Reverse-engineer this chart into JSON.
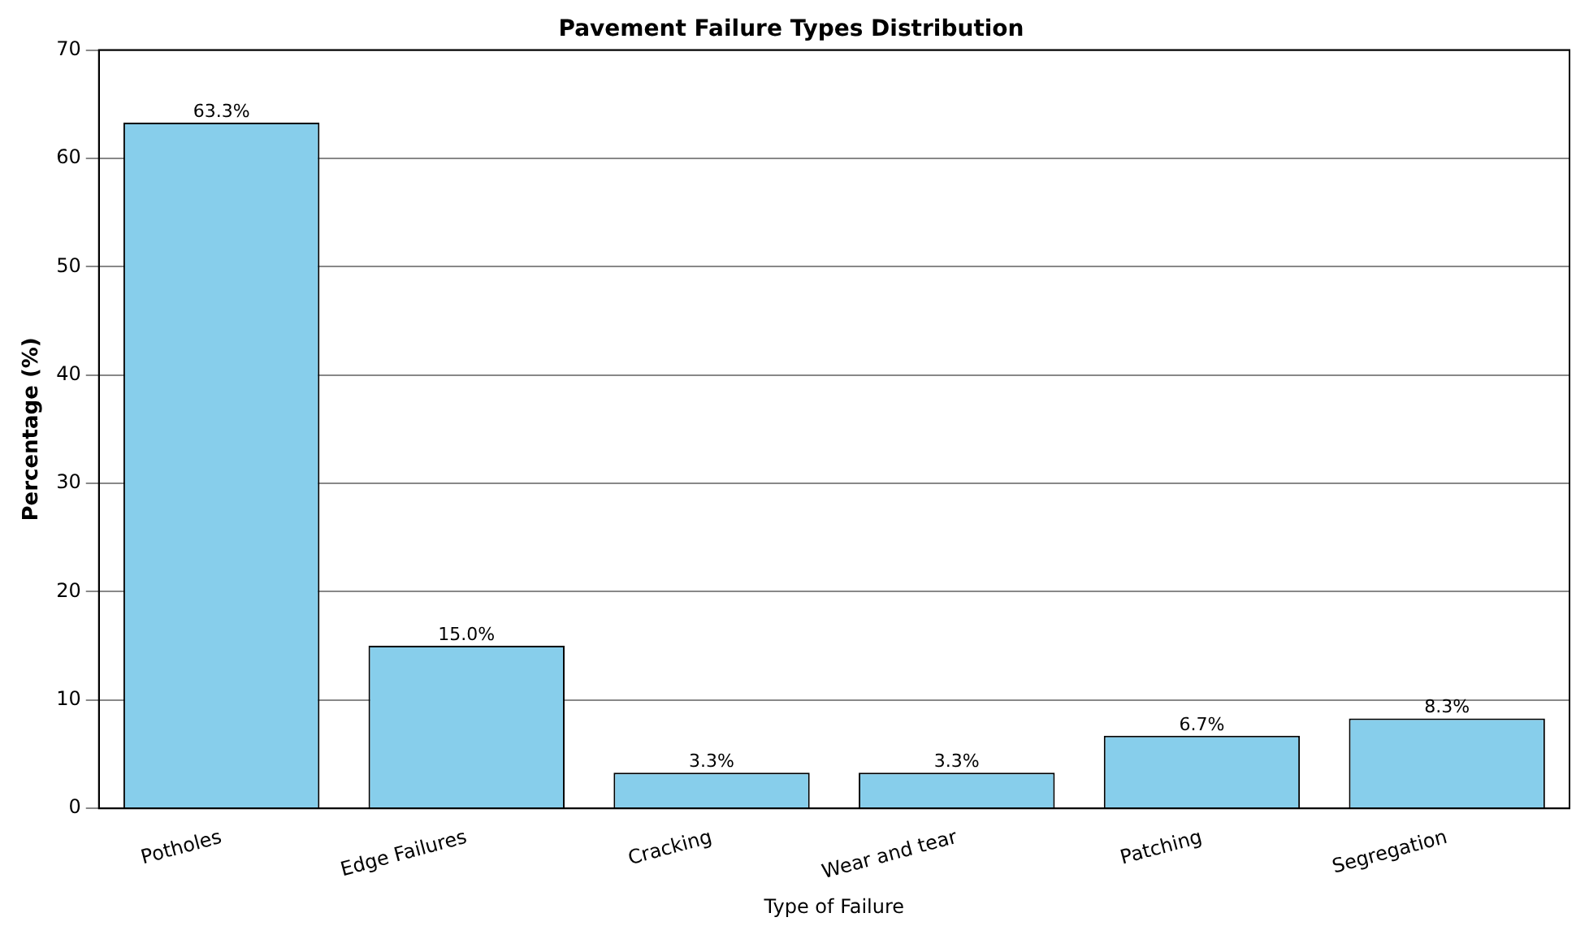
{
  "chart_data": {
    "type": "bar",
    "title": "Pavement Failure Types Distribution",
    "xlabel": "Type of Failure",
    "ylabel": "Percentage (%)",
    "categories": [
      "Potholes",
      "Edge Failures",
      "Cracking",
      "Wear and tear",
      "Patching",
      "Segregation"
    ],
    "values": [
      63.3,
      15.0,
      3.3,
      3.3,
      6.7,
      8.3
    ],
    "value_labels": [
      "63.3%",
      "15.0%",
      "3.3%",
      "3.3%",
      "6.7%",
      "8.3%"
    ],
    "color": "#87ceeb",
    "ylim": [
      0,
      70
    ],
    "yticks": [
      0,
      10,
      20,
      30,
      40,
      50,
      60,
      70
    ],
    "grid": "y",
    "legend": false
  }
}
